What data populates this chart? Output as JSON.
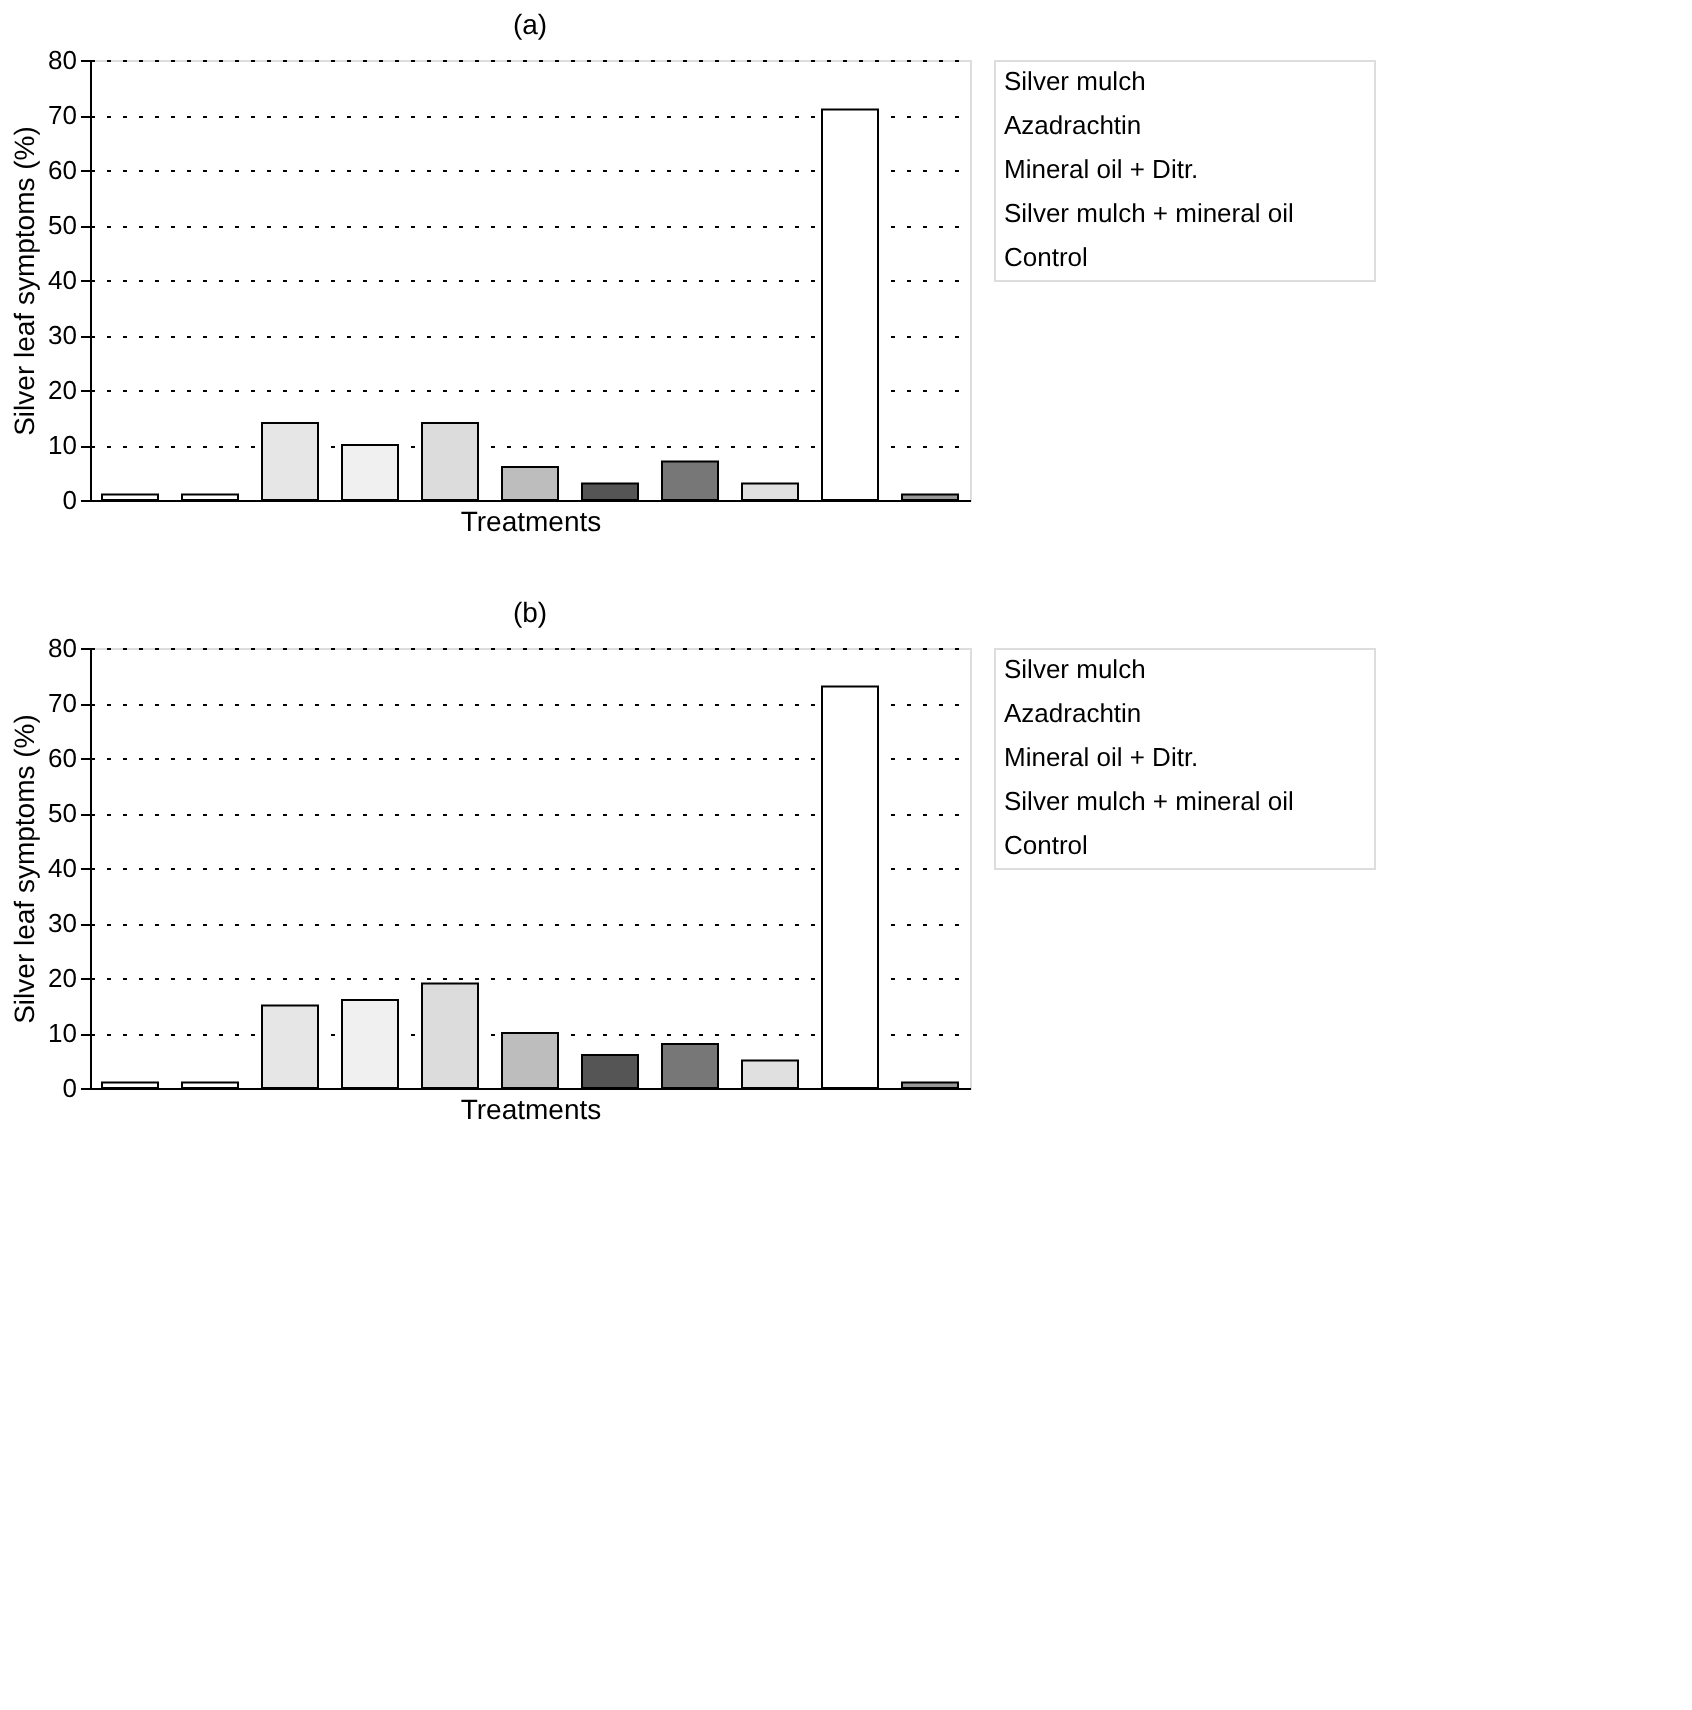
{
  "chart_data": [
    {
      "type": "bar",
      "title": "(a)",
      "xlabel": "Treatments",
      "ylabel": "Silver leaf symptoms (%)",
      "categories": [
        null,
        null,
        null,
        null,
        null,
        null,
        null,
        null,
        null,
        null,
        null
      ],
      "values": [
        1,
        1,
        14,
        10,
        14,
        6,
        3,
        7,
        3,
        71,
        1
      ],
      "colors": [
        "#ffffff",
        "#ffffff",
        "#e6e6e6",
        "#f0f0f0",
        "#dcdcdc",
        "#bdbdbd",
        "#555555",
        "#777777",
        "#e0e0e0",
        "#ffffff",
        "#999999"
      ],
      "ylim": [
        0,
        80
      ],
      "yticks": [
        0,
        10,
        20,
        30,
        40,
        50,
        60,
        70,
        80
      ],
      "grid": "y",
      "annotations": [
        "Silver mulch",
        "Azadrachtin",
        "Mineral oil + Ditr.",
        "Silver mulch + mineral oil",
        "Control"
      ]
    },
    {
      "type": "bar",
      "title": "(b)",
      "xlabel": "Treatments",
      "ylabel": "Silver leaf symptoms (%)",
      "categories": [
        null,
        null,
        null,
        null,
        null,
        null,
        null,
        null,
        null,
        null,
        null
      ],
      "values": [
        1,
        1,
        15,
        16,
        19,
        10,
        6,
        8,
        5,
        73,
        1
      ],
      "colors": [
        "#ffffff",
        "#ffffff",
        "#e6e6e6",
        "#f0f0f0",
        "#dcdcdc",
        "#bdbdbd",
        "#555555",
        "#777777",
        "#e0e0e0",
        "#ffffff",
        "#999999"
      ],
      "ylim": [
        0,
        80
      ],
      "yticks": [
        0,
        10,
        20,
        30,
        40,
        50,
        60,
        70,
        80
      ],
      "grid": "y",
      "annotations": [
        "Silver mulch",
        "Azadrachtin",
        "Mineral oil + Ditr.",
        "Silver mulch + mineral oil",
        "Control"
      ]
    }
  ]
}
